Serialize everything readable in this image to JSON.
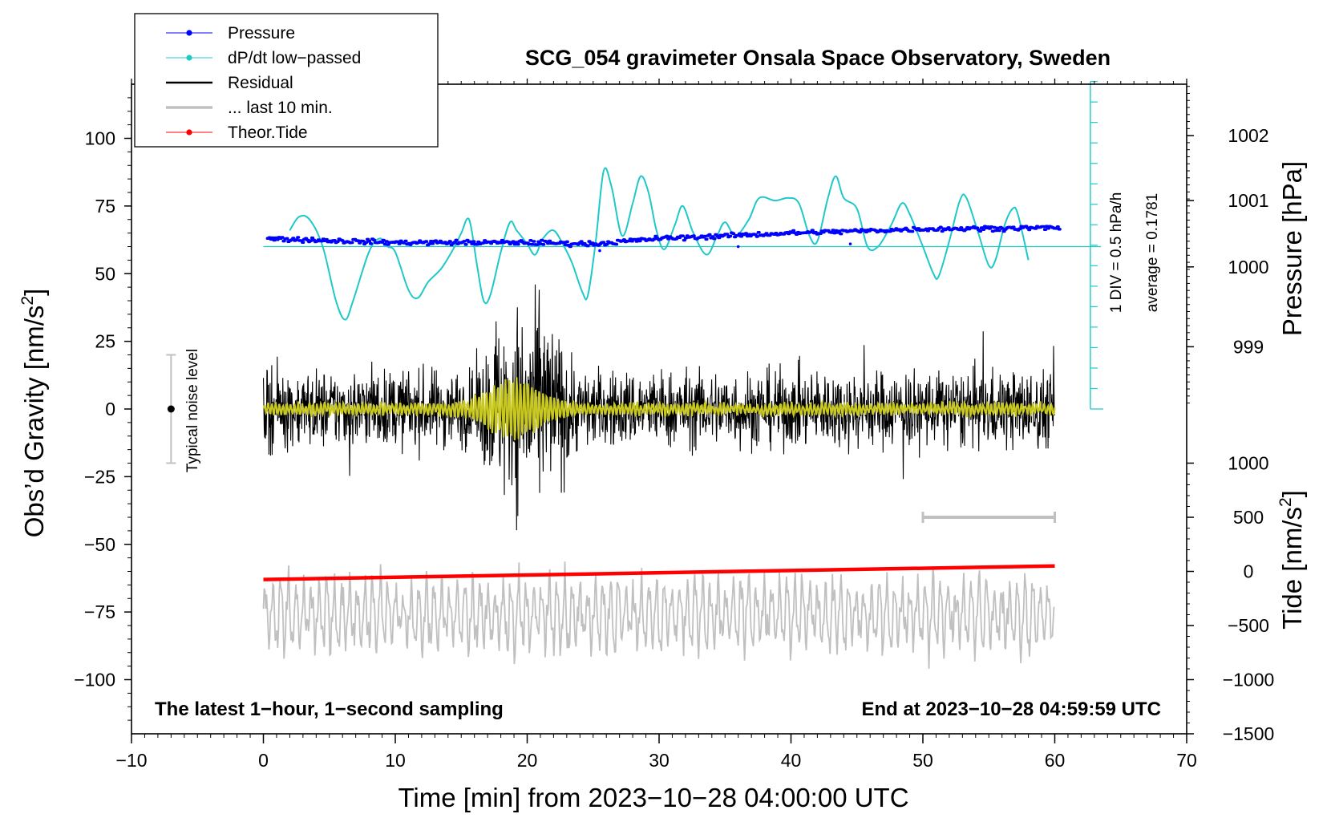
{
  "chart_data": {
    "type": "line",
    "title": "SCG_054 gravimeter Onsala Space Observatory, Sweden",
    "xlabel": "Time [min] from 2023−10−28 04:00:00 UTC",
    "ylabel_left": "Obs’d Gravity [nm/s",
    "ylabel_left_sup": "2",
    "ylabel_left_end": "]",
    "ylabel_right_pressure": "Pressure [hPa]",
    "ylabel_right_tide": "Tide [nm/s",
    "ylabel_right_tide_sup": "2",
    "ylabel_right_tide_end": "]",
    "xlim": [
      -10,
      70
    ],
    "ylim_gravity": [
      -120,
      120
    ],
    "x_ticks": [
      "−10",
      "0",
      "10",
      "20",
      "30",
      "40",
      "50",
      "60",
      "70"
    ],
    "x_tick_values": [
      -10,
      0,
      10,
      20,
      30,
      40,
      50,
      60,
      70
    ],
    "gravity_ticks": [
      "100",
      "75",
      "50",
      "25",
      "0",
      "−25",
      "−50",
      "−75",
      "−100"
    ],
    "gravity_tick_values": [
      100,
      75,
      50,
      25,
      0,
      -25,
      -50,
      -75,
      -100
    ],
    "pressure_ticks": [
      "1002",
      "1001",
      "1000",
      "999"
    ],
    "pressure_tick_values": [
      1002,
      1001,
      1000,
      999
    ],
    "pressure_gravity_equiv": [
      [
        1002,
        101
      ],
      [
        1001,
        77
      ],
      [
        1000,
        52.5
      ],
      [
        999,
        23
      ]
    ],
    "tide_ticks": [
      "1000",
      "500",
      "0",
      "−500",
      "−1000",
      "−1500"
    ],
    "tide_tick_values": [
      1000,
      500,
      0,
      -500,
      -1000,
      -1500
    ],
    "tide_gravity_equiv": [
      [
        1000,
        -20
      ],
      [
        -1500,
        -120
      ]
    ],
    "series": [
      {
        "name": "Pressure",
        "color": "#0000ff",
        "description_points_min": [
          [
            0,
            63
          ],
          [
            10,
            61.5
          ],
          [
            20,
            61.5
          ],
          [
            25,
            61
          ],
          [
            30,
            63
          ],
          [
            40,
            65
          ],
          [
            50,
            66.5
          ],
          [
            60,
            67
          ]
        ]
      },
      {
        "name": "dP/dt low−passed",
        "color": "#20c8c8",
        "baseline": 60,
        "points_min": [
          [
            2,
            66
          ],
          [
            2.7,
            71
          ],
          [
            3.5,
            70
          ],
          [
            4.5,
            60
          ],
          [
            5.5,
            40
          ],
          [
            6.2,
            33
          ],
          [
            6.8,
            40
          ],
          [
            8,
            58
          ],
          [
            8.8,
            63
          ],
          [
            9.4,
            60
          ],
          [
            10,
            58
          ],
          [
            11,
            44
          ],
          [
            11.7,
            41
          ],
          [
            12.5,
            47
          ],
          [
            13.5,
            52
          ],
          [
            14.5,
            60
          ],
          [
            15,
            65
          ],
          [
            15.6,
            70
          ],
          [
            16.2,
            53
          ],
          [
            16.7,
            40
          ],
          [
            17.2,
            42
          ],
          [
            18,
            58
          ],
          [
            18.7,
            69
          ],
          [
            19.2,
            66
          ],
          [
            20,
            61
          ],
          [
            20.6,
            57
          ],
          [
            21.2,
            63
          ],
          [
            22,
            66
          ],
          [
            22.8,
            60
          ],
          [
            23.4,
            54
          ],
          [
            24.2,
            43
          ],
          [
            24.6,
            42
          ],
          [
            25.2,
            62
          ],
          [
            25.8,
            88
          ],
          [
            26.4,
            82
          ],
          [
            27.2,
            64
          ],
          [
            28,
            76
          ],
          [
            28.6,
            86
          ],
          [
            29.2,
            80
          ],
          [
            29.8,
            66
          ],
          [
            30.4,
            59
          ],
          [
            31.2,
            68
          ],
          [
            31.8,
            75
          ],
          [
            32.6,
            65
          ],
          [
            33.6,
            57
          ],
          [
            34.4,
            64
          ],
          [
            35,
            69
          ],
          [
            35.8,
            64
          ],
          [
            36.8,
            70
          ],
          [
            37.6,
            78
          ],
          [
            38.8,
            77
          ],
          [
            39.8,
            78
          ],
          [
            40.6,
            76
          ],
          [
            41.4,
            64
          ],
          [
            42,
            62
          ],
          [
            42.8,
            78
          ],
          [
            43.4,
            86
          ],
          [
            44,
            78
          ],
          [
            45,
            74
          ],
          [
            45.8,
            60
          ],
          [
            46.6,
            60
          ],
          [
            47.6,
            68
          ],
          [
            48.4,
            76
          ],
          [
            49,
            72
          ],
          [
            50,
            60
          ],
          [
            50.8,
            50
          ],
          [
            51.2,
            49
          ],
          [
            52,
            62
          ],
          [
            52.8,
            77
          ],
          [
            53.3,
            78
          ],
          [
            54.2,
            65
          ],
          [
            55,
            53
          ],
          [
            55.5,
            55
          ],
          [
            56.2,
            68
          ],
          [
            56.8,
            74
          ],
          [
            57.2,
            72
          ],
          [
            58,
            55
          ]
        ]
      },
      {
        "name": "Residual",
        "color": "#000000",
        "x_range_min": [
          0,
          60
        ],
        "typical_range": [
          -20,
          20
        ],
        "event_range_min": [
          16,
          24
        ],
        "event_extremes": [
          48,
          -53
        ]
      },
      {
        "name": "... last 10 min.",
        "color": "#c0c0c0",
        "description": "residual overlay trace",
        "scale_bar_min": [
          50,
          60
        ]
      },
      {
        "name": "Theor.Tide",
        "color": "#ff0000",
        "points_min_gravity": [
          [
            0,
            -63
          ],
          [
            60,
            -58
          ]
        ]
      }
    ],
    "smoothed_residual": {
      "color": "#c8c81e"
    },
    "noise_bar": {
      "label": "Typical noise level",
      "x_min": -7,
      "range": [
        -20,
        20
      ]
    },
    "scale_bar": {
      "text_main": "1 DIV = 0.5 hPa/h",
      "text_avg": "average = 0.1781",
      "color": "#20c8c8",
      "x_min": 62.7,
      "range_gravity": [
        0,
        121
      ],
      "divisions": 16
    },
    "corner_left": "The latest 1−hour, 1−second sampling",
    "corner_right": "End at 2023−10−28 04:59:59 UTC",
    "legend": [
      {
        "label": "Pressure",
        "color": "#0000ff",
        "marker": true,
        "width": 1
      },
      {
        "label": "dP/dt low−passed",
        "color": "#20c8c8",
        "marker": true,
        "width": 1
      },
      {
        "label": "Residual",
        "color": "#000000",
        "marker": false,
        "width": 2
      },
      {
        "label": "... last 10 min.",
        "color": "#c0c0c0",
        "marker": false,
        "width": 3
      },
      {
        "label": "Theor.Tide",
        "color": "#ff0000",
        "marker": true,
        "width": 1
      }
    ],
    "legend_placement": "top-left",
    "grid": false
  }
}
